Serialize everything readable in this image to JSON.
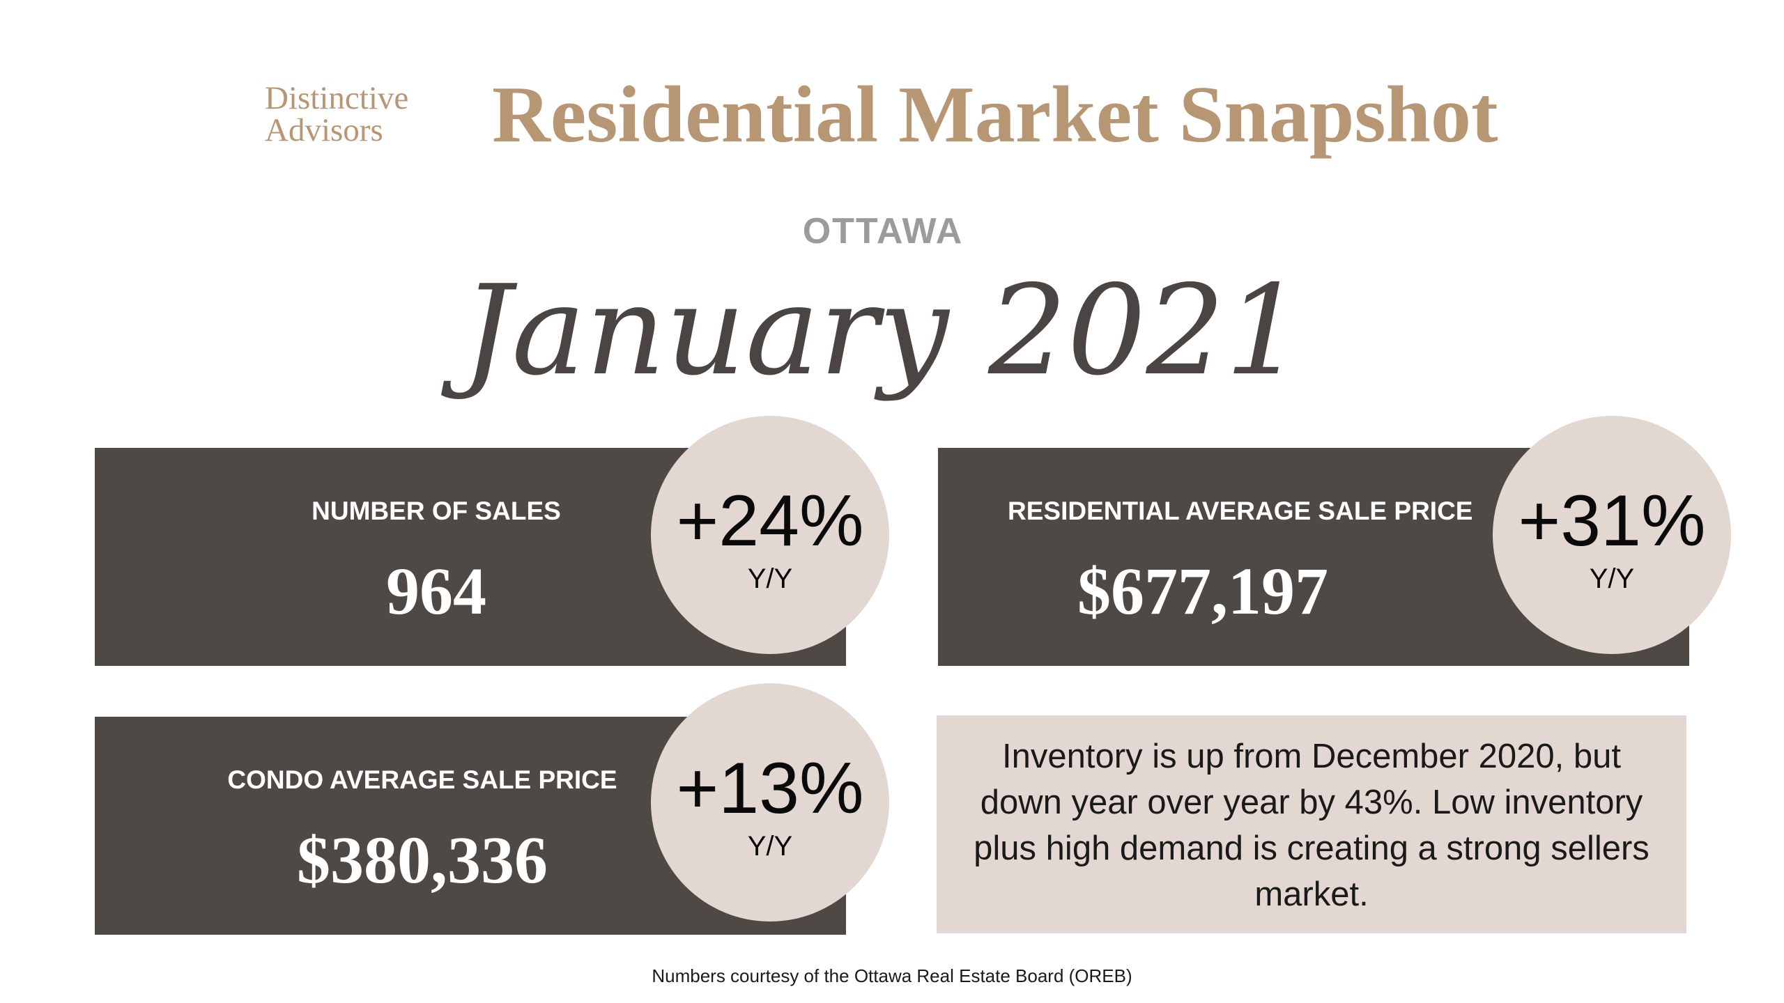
{
  "brand": {
    "line1": "Distinctive",
    "line2": "Advisors"
  },
  "title": "Residential Market Snapshot",
  "city": "OTTAWA",
  "period": "January 2021",
  "cards": {
    "sales": {
      "label": "NUMBER OF SALES",
      "value": "964",
      "change": "+24%",
      "change_unit": "Y/Y"
    },
    "residential": {
      "label": "RESIDENTIAL AVERAGE SALE PRICE",
      "value": "$677,197",
      "change": "+31%",
      "change_unit": "Y/Y"
    },
    "condo": {
      "label": "CONDO AVERAGE SALE PRICE",
      "value": "$380,336",
      "change": "+13%",
      "change_unit": "Y/Y"
    }
  },
  "inventory_note": "Inventory is up from December 2020, but down year over year by 43%. Low inventory plus high demand is creating a strong sellers market.",
  "footer": "Numbers courtesy of the Ottawa Real Estate Board (OREB)",
  "colors": {
    "brand_tan": "#b79674",
    "card_dark": "#4e4945",
    "circle_beige": "#e2d8d1",
    "city_gray": "#9b9b9b",
    "script_dark": "#4a4542"
  }
}
